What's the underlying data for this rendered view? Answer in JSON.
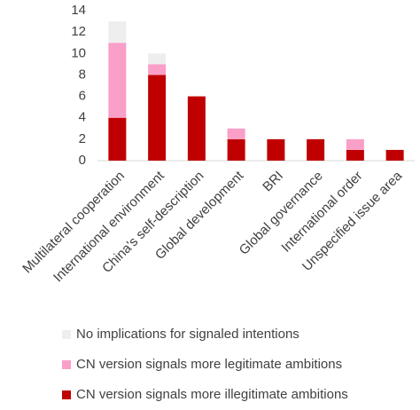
{
  "chart_data": {
    "type": "bar",
    "stacked": true,
    "categories": [
      "Multilateral cooperation",
      "International environment",
      "China's self-description",
      "Global development",
      "BRI",
      "Global governance",
      "International order",
      "Unspecified issue area"
    ],
    "series": [
      {
        "name": "No implications for signaled intentions",
        "color": "#eeeeee",
        "values": [
          2,
          1,
          0,
          0,
          0,
          0,
          0,
          0
        ]
      },
      {
        "name": "CN version signals more legitimate ambitions",
        "color": "#fa9fc8",
        "values": [
          7,
          1,
          0,
          1,
          0,
          0,
          1,
          0
        ]
      },
      {
        "name": "CN version signals more illegitimate ambitions",
        "color": "#c00000",
        "values": [
          4,
          8,
          6,
          2,
          2,
          2,
          1,
          1
        ]
      }
    ],
    "ylim": [
      0,
      14
    ],
    "yticks": [
      0,
      2,
      4,
      6,
      8,
      10,
      12,
      14
    ],
    "grid": false,
    "legend": "bottom"
  }
}
